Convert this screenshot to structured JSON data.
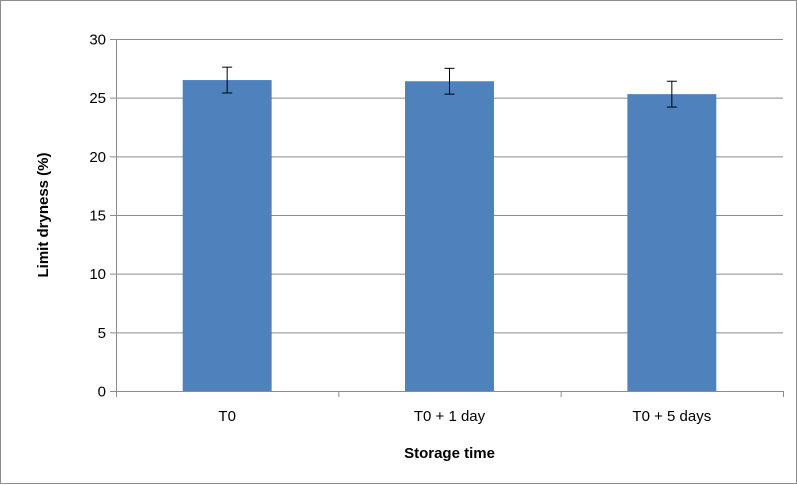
{
  "chart_data": {
    "type": "bar",
    "categories": [
      "T0",
      "T0 + 1 day",
      "T0 + 5 days"
    ],
    "series": [
      {
        "values": [
          26.5,
          26.4,
          25.3
        ],
        "errors": [
          1.1,
          1.1,
          1.1
        ],
        "color": "#4F81BD"
      }
    ],
    "xlabel": "Storage time",
    "ylabel": "Limit dryness (%)",
    "ylim": [
      0,
      30
    ],
    "yticks": [
      0,
      5,
      10,
      15,
      20,
      25,
      30
    ],
    "grid": true
  }
}
